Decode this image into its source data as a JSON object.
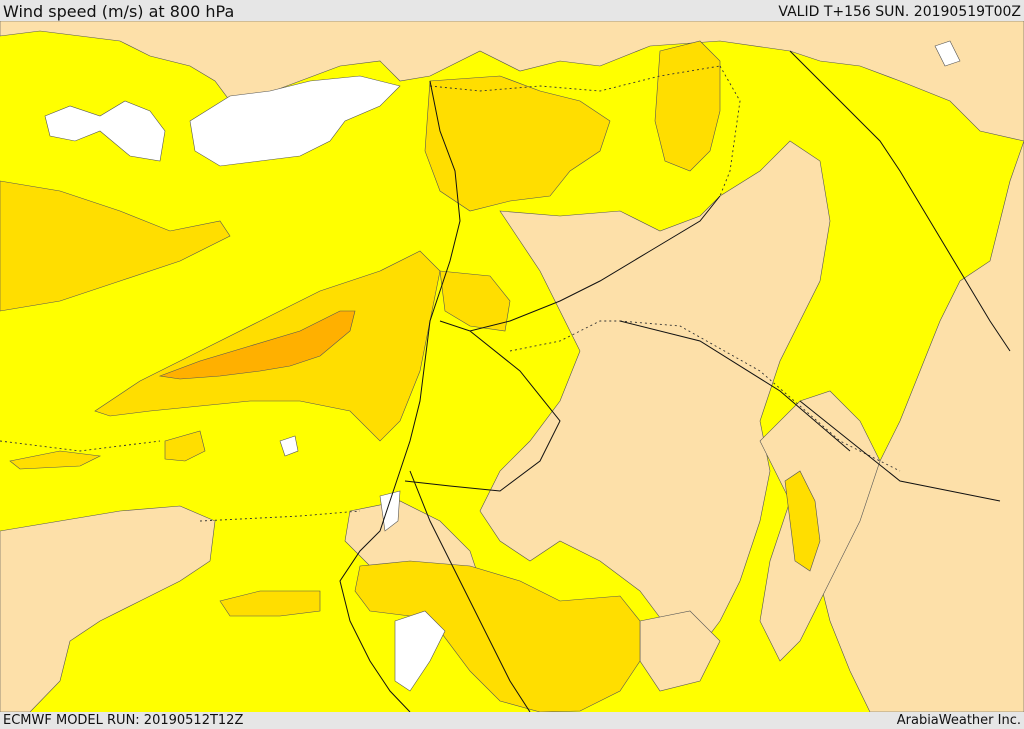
{
  "header": {
    "title": "Wind speed (m/s) at 800 hPa",
    "valid_time": "VALID T+156 SUN. 20190519T00Z"
  },
  "footer": {
    "model_run": "ECMWF MODEL RUN: 20190512T12Z",
    "credit": "ArabiaWeather Inc."
  },
  "colors": {
    "low_wind": "#fde0a9",
    "moderate_wind": "#ffff00",
    "fresh_wind": "#ffde00",
    "strong_wind": "#ffc600",
    "stronger_wind": "#ffb000",
    "no_data_white": "#ffffff",
    "background": "#e6e6e6"
  }
}
